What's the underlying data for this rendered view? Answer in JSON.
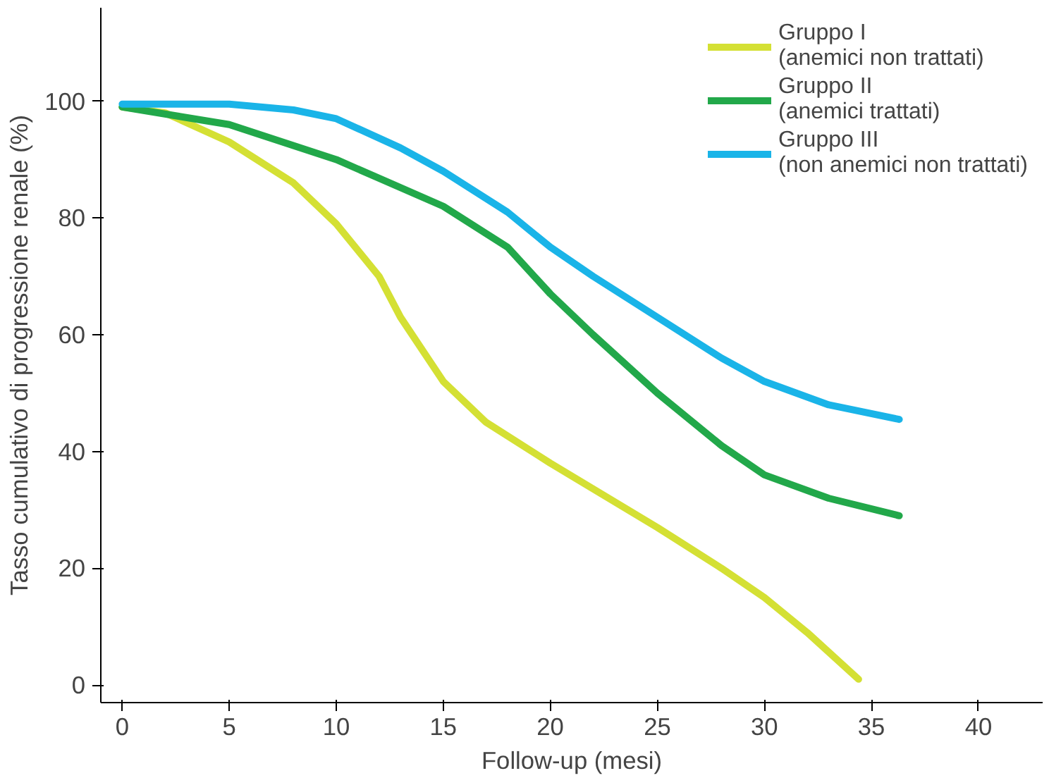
{
  "chart_data": {
    "type": "line",
    "xlabel": "Follow-up (mesi)",
    "ylabel": "Tasso cumulativo di progressione renale (%)",
    "xlim": [
      -1,
      43
    ],
    "ylim": [
      -3,
      116
    ],
    "xticks": [
      0,
      5,
      10,
      15,
      20,
      25,
      30,
      35,
      40
    ],
    "yticks": [
      0,
      20,
      40,
      60,
      80,
      100
    ],
    "grid": false,
    "legend": "top right",
    "series": [
      {
        "name": "Gruppo I\n(anemici non trattati)",
        "color": "#d4e034",
        "x": [
          0,
          2,
          5,
          8,
          10,
          12,
          13,
          15,
          17,
          20,
          25,
          28,
          30,
          32,
          34.4
        ],
        "values": [
          99,
          98,
          93,
          86,
          79,
          70,
          63,
          52,
          45,
          38,
          27,
          20,
          15,
          9,
          1
        ]
      },
      {
        "name": "Gruppo II\n(anemici trattati)",
        "color": "#22a84a",
        "x": [
          0,
          5,
          10,
          15,
          18,
          20,
          22,
          25,
          28,
          30,
          33,
          36.3
        ],
        "values": [
          99,
          96,
          90,
          82,
          75,
          67,
          60,
          50,
          41,
          36,
          32,
          29
        ]
      },
      {
        "name": "Gruppo III\n(non anemici non trattati)",
        "color": "#1ab4e8",
        "x": [
          0,
          5,
          8,
          10,
          13,
          15,
          18,
          20,
          22,
          25,
          28,
          30,
          33,
          36.3
        ],
        "values": [
          99.5,
          99.5,
          98.5,
          97,
          92,
          88,
          81,
          75,
          70,
          63,
          56,
          52,
          48,
          45.5
        ]
      }
    ]
  }
}
